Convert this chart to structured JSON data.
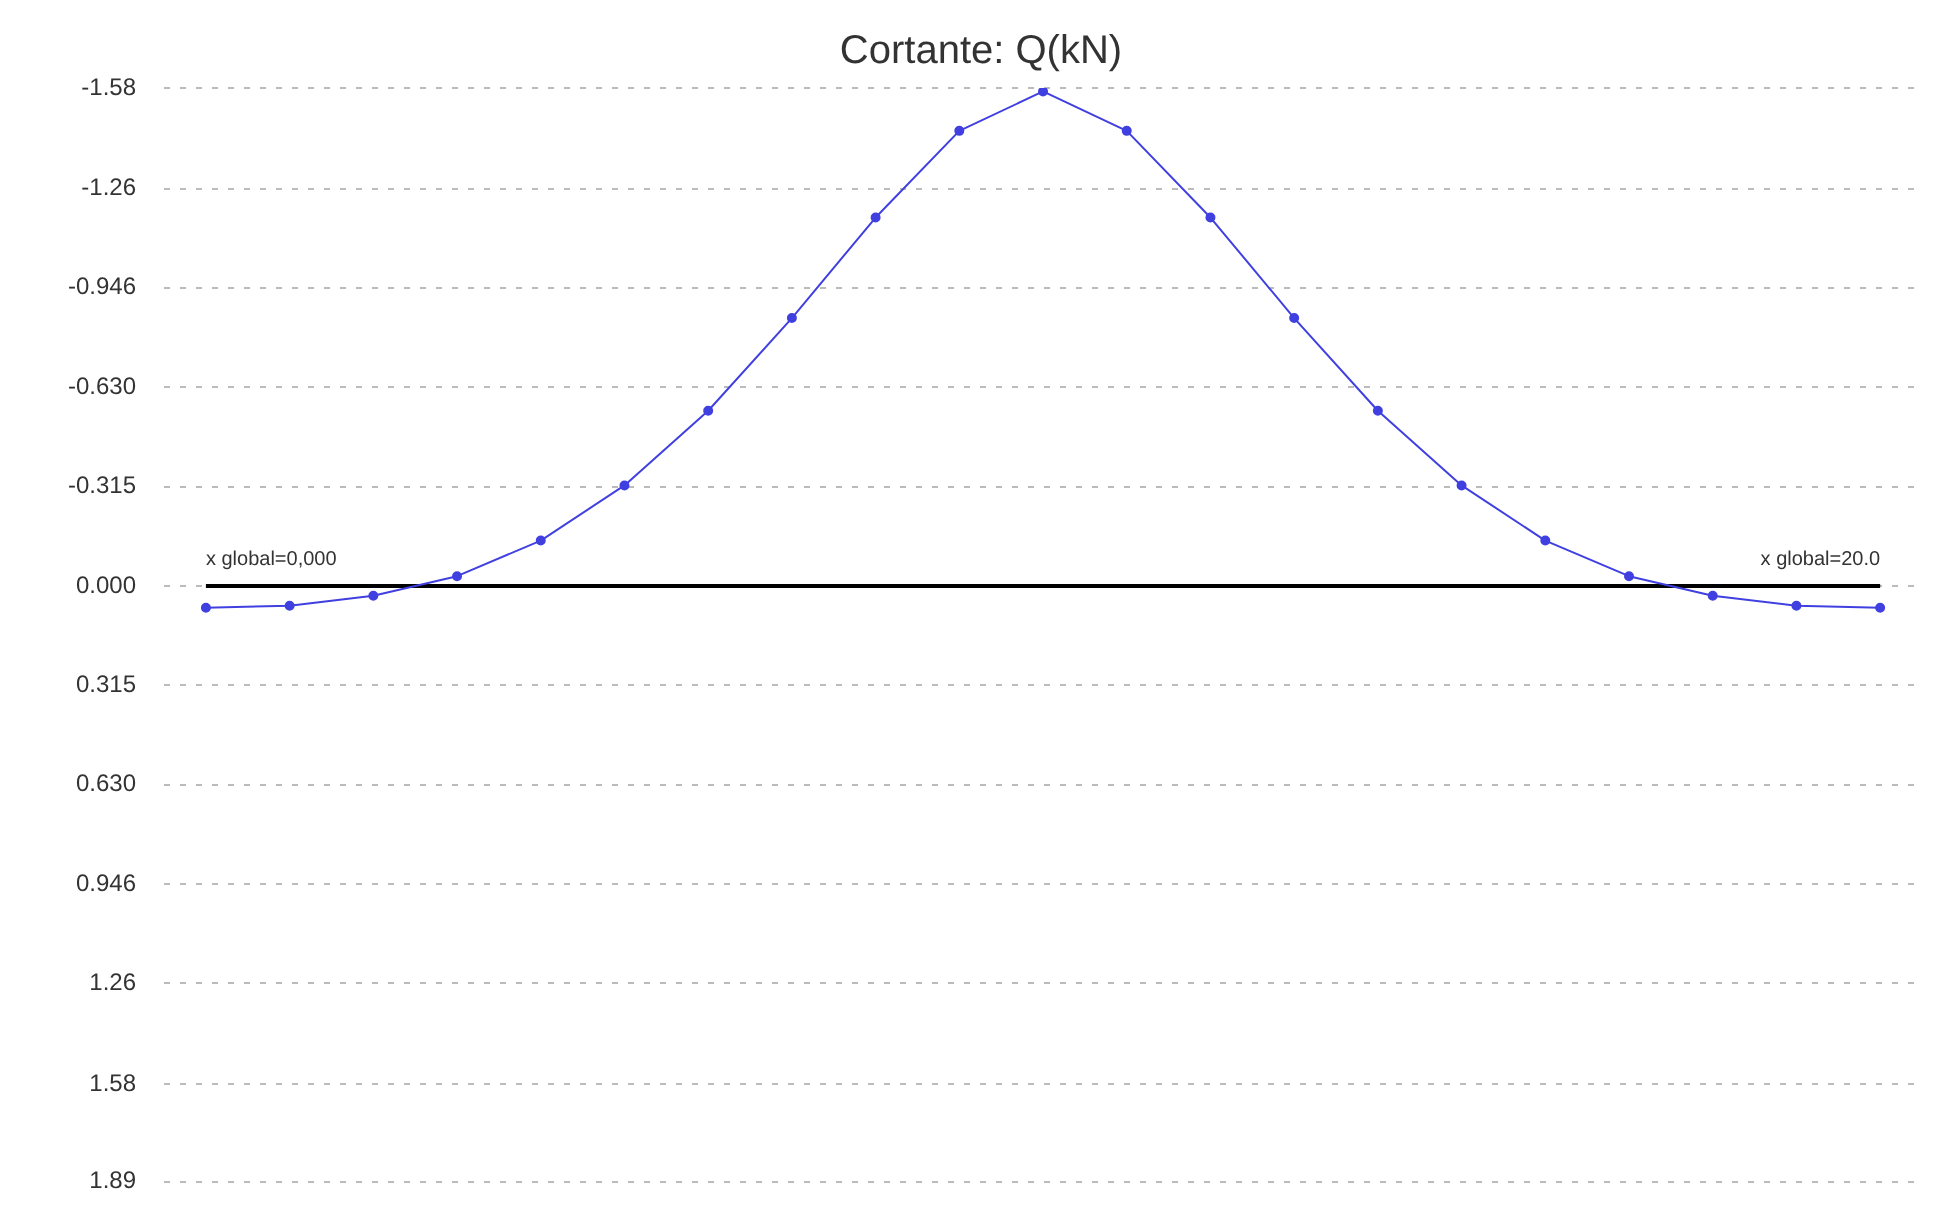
{
  "chart_data": {
    "type": "line",
    "title": "Cortante: Q(kN)",
    "categories": [
      null,
      null,
      null,
      null,
      null,
      null,
      null,
      null,
      null,
      null,
      null,
      null,
      null,
      null,
      null,
      null,
      null,
      null,
      null,
      null,
      null
    ],
    "ylim": [
      1.89,
      -1.58
    ],
    "yticks": [
      {
        "value": -1.58,
        "label": "-1.58"
      },
      {
        "value": -1.26,
        "label": "-1.26"
      },
      {
        "value": -0.946,
        "label": "-0.946"
      },
      {
        "value": -0.63,
        "label": "-0.630"
      },
      {
        "value": -0.315,
        "label": "-0.315"
      },
      {
        "value": 0,
        "label": "0.000"
      },
      {
        "value": 0.315,
        "label": "0.315"
      },
      {
        "value": 0.63,
        "label": "0.630"
      },
      {
        "value": 0.946,
        "label": "0.946"
      },
      {
        "value": 1.26,
        "label": "1.26"
      },
      {
        "value": 1.58,
        "label": "1.58"
      },
      {
        "value": 1.89,
        "label": "1.89"
      }
    ],
    "tick_labels": "y",
    "grid": "y",
    "legend": false,
    "marker": "circle",
    "series": [
      {
        "color": "#4040e0",
        "values": [
          0.069,
          0.063,
          0.031,
          -0.031,
          -0.144,
          -0.319,
          -0.556,
          -0.85,
          -1.169,
          -1.444,
          -1.569,
          -1.444,
          -1.169,
          -0.85,
          -0.556,
          -0.319,
          -0.144,
          -0.031,
          0.031,
          0.063,
          0.069
        ]
      }
    ],
    "ref_lines": [
      {
        "axis": "y",
        "value": 0,
        "color": "#000000"
      }
    ],
    "annotations": [
      {
        "text": "x global=0,000",
        "y": 0
      },
      {
        "text": "x global=20.0",
        "y": 0
      }
    ]
  }
}
